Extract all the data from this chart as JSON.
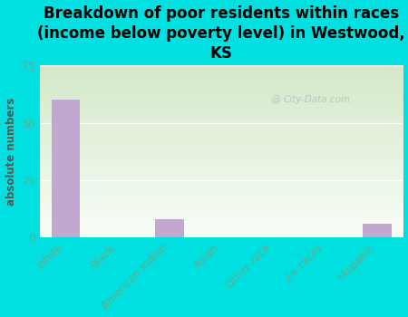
{
  "title": "Breakdown of poor residents within races\n(income below poverty level) in Westwood,\nKS",
  "categories": [
    "White",
    "Black",
    "American Indian",
    "Asian",
    "Other race",
    "2+ races",
    "Hispanic"
  ],
  "values": [
    60,
    0,
    8,
    0,
    0,
    0,
    6
  ],
  "bar_color": "#c2a8d0",
  "ylabel": "absolute numbers",
  "ylim": [
    0,
    75
  ],
  "yticks": [
    0,
    25,
    50,
    75
  ],
  "background_color": "#00e0e0",
  "plot_bg_top_left": "#d4e8c8",
  "plot_bg_bottom_right": "#f8fef8",
  "grid_color": "#ffffff",
  "title_fontsize": 12,
  "label_fontsize": 8.5,
  "tick_color": "#66aa88",
  "watermark": "City-Data.com"
}
